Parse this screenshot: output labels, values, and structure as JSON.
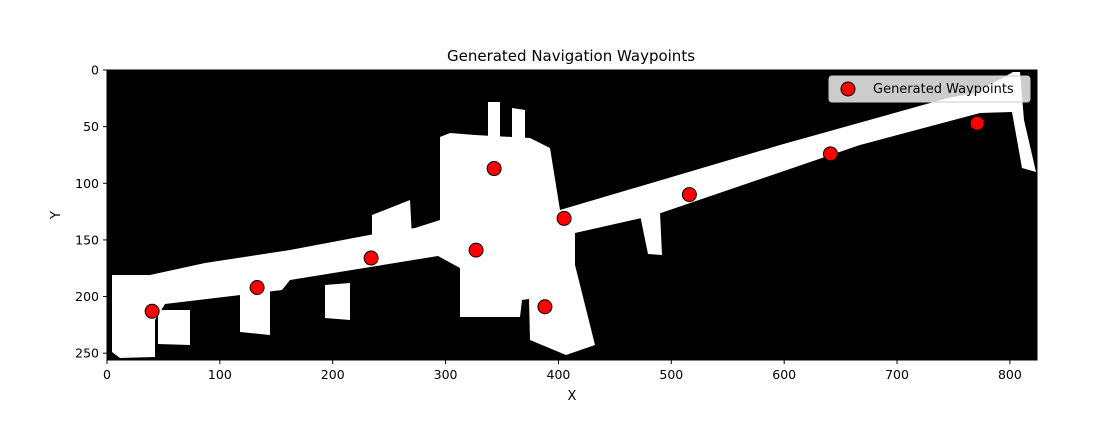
{
  "chart_data": {
    "type": "scatter",
    "title": "Generated Navigation Waypoints",
    "xlabel": "X",
    "ylabel": "Y",
    "xlim": [
      0,
      824
    ],
    "ylim": [
      256,
      0
    ],
    "y_inverted": true,
    "x_ticks": [
      "0",
      "100",
      "200",
      "300",
      "400",
      "500",
      "600",
      "700",
      "800"
    ],
    "y_ticks": [
      "0",
      "50",
      "100",
      "150",
      "200",
      "250"
    ],
    "background_image": "binary occupancy map (white free space on black)",
    "legend": {
      "placement": "top-right",
      "entries": [
        "Generated Waypoints"
      ]
    },
    "series": [
      {
        "name": "Generated Waypoints",
        "marker_color": "#ff0000",
        "marker_edge": "#000000",
        "points": [
          {
            "x": 40,
            "y": 213
          },
          {
            "x": 133,
            "y": 192
          },
          {
            "x": 234,
            "y": 166
          },
          {
            "x": 327,
            "y": 159
          },
          {
            "x": 343,
            "y": 87
          },
          {
            "x": 405,
            "y": 131
          },
          {
            "x": 388,
            "y": 209
          },
          {
            "x": 516,
            "y": 110
          },
          {
            "x": 641,
            "y": 74
          },
          {
            "x": 771,
            "y": 47
          }
        ]
      }
    ]
  }
}
